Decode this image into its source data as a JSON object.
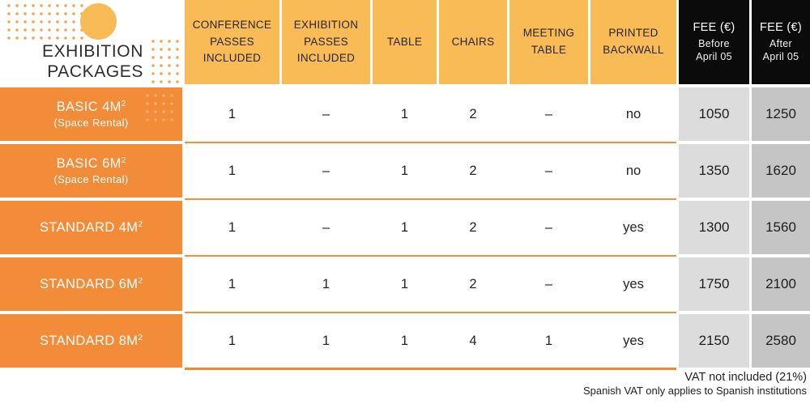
{
  "chart_data": {
    "type": "table",
    "title": "EXHIBITION PACKAGES",
    "title_lines": [
      "EXHIBITION",
      "PACKAGES"
    ],
    "columns": [
      "CONFERENCE PASSES INCLUDED",
      "EXHIBITION PASSES INCLUDED",
      "TABLE",
      "CHAIRS",
      "MEETING TABLE",
      "PRINTED BACKWALL"
    ],
    "fee_columns": [
      {
        "title": "FEE (€)",
        "sub1": "Before",
        "sub2": "April 05"
      },
      {
        "title": "FEE (€)",
        "sub1": "After",
        "sub2": "April 05"
      }
    ],
    "rows": [
      {
        "label": "BASIC 4M",
        "label_sup": "2",
        "sublabel": "(Space Rental)",
        "values": [
          "1",
          "–",
          "1",
          "2",
          "–",
          "no"
        ],
        "fee_before": "1050",
        "fee_after": "1250"
      },
      {
        "label": "BASIC 6M",
        "label_sup": "2",
        "sublabel": "(Space Rental)",
        "values": [
          "1",
          "–",
          "1",
          "2",
          "–",
          "no"
        ],
        "fee_before": "1350",
        "fee_after": "1620"
      },
      {
        "label": "STANDARD 4M",
        "label_sup": "2",
        "sublabel": "",
        "values": [
          "1",
          "–",
          "1",
          "2",
          "–",
          "yes"
        ],
        "fee_before": "1300",
        "fee_after": "1560"
      },
      {
        "label": "STANDARD 6M",
        "label_sup": "2",
        "sublabel": "",
        "values": [
          "1",
          "1",
          "1",
          "2",
          "–",
          "yes"
        ],
        "fee_before": "1750",
        "fee_after": "2100"
      },
      {
        "label": "STANDARD 8M",
        "label_sup": "2",
        "sublabel": "",
        "values": [
          "1",
          "1",
          "1",
          "4",
          "1",
          "yes"
        ],
        "fee_before": "2150",
        "fee_after": "2580"
      }
    ],
    "footer_lines": [
      "VAT not included (21%)",
      "Spanish VAT only applies to Spanish institutions"
    ],
    "layout": {
      "legend": "none",
      "grid": "off"
    }
  },
  "colors": {
    "header_orange": "#F9BB56",
    "row_orange": "#F28C38",
    "divider_orange": "#F0913C",
    "fee_header_black": "#0B0B0B",
    "fee_before_gray": "#DCDCDC",
    "fee_after_gray": "#C5C5C5",
    "text_dark": "#262626",
    "text_white": "#FFFFFF"
  }
}
